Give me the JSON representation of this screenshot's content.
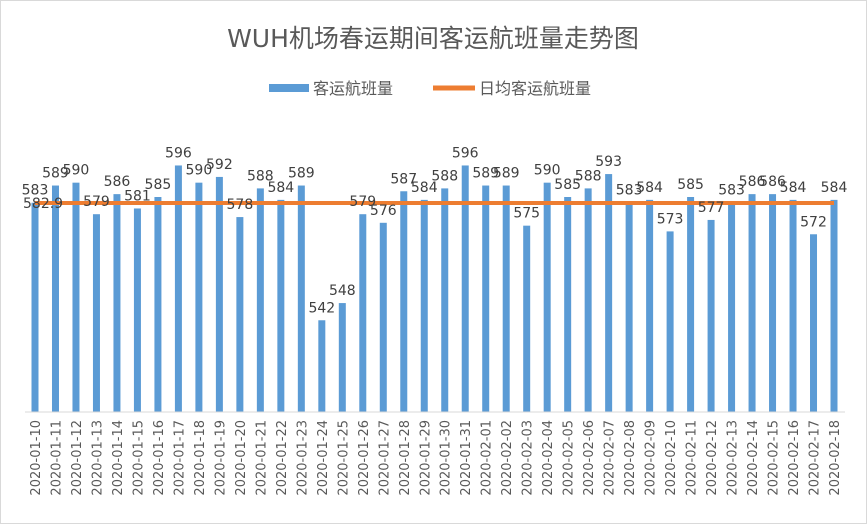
{
  "chart_data": {
    "type": "bar",
    "title": "WUH机场春运期间客运航班量走势图",
    "legend": {
      "placement": "top",
      "entries": [
        "客运航班量",
        "日均客运航班量"
      ]
    },
    "categories": [
      "2020-01-10",
      "2020-01-11",
      "2020-01-12",
      "2020-01-13",
      "2020-01-14",
      "2020-01-15",
      "2020-01-16",
      "2020-01-17",
      "2020-01-18",
      "2020-01-19",
      "2020-01-20",
      "2020-01-21",
      "2020-01-22",
      "2020-01-23",
      "2020-01-24",
      "2020-01-25",
      "2020-01-26",
      "2020-01-27",
      "2020-01-28",
      "2020-01-29",
      "2020-01-30",
      "2020-01-31",
      "2020-02-01",
      "2020-02-02",
      "2020-02-03",
      "2020-02-04",
      "2020-02-05",
      "2020-02-06",
      "2020-02-07",
      "2020-02-08",
      "2020-02-09",
      "2020-02-10",
      "2020-02-11",
      "2020-02-12",
      "2020-02-13",
      "2020-02-14",
      "2020-02-15",
      "2020-02-16",
      "2020-02-17",
      "2020-02-18"
    ],
    "series": [
      {
        "name": "客运航班量",
        "type": "bar",
        "color": "#5b9bd5",
        "values": [
          583,
          589,
          590,
          579,
          586,
          581,
          585,
          596,
          590,
          592,
          578,
          588,
          584,
          589,
          542,
          548,
          579,
          576,
          587,
          584,
          588,
          596,
          589,
          589,
          575,
          590,
          585,
          588,
          593,
          583,
          584,
          573,
          585,
          577,
          583,
          586,
          586,
          584,
          572,
          584
        ]
      },
      {
        "name": "日均客运航班量",
        "type": "line",
        "color": "#ed7d31",
        "value": 582.9,
        "label": "582.9"
      }
    ],
    "ylim": [
      510,
      600
    ],
    "grid": false,
    "xlabel": "",
    "ylabel": ""
  }
}
